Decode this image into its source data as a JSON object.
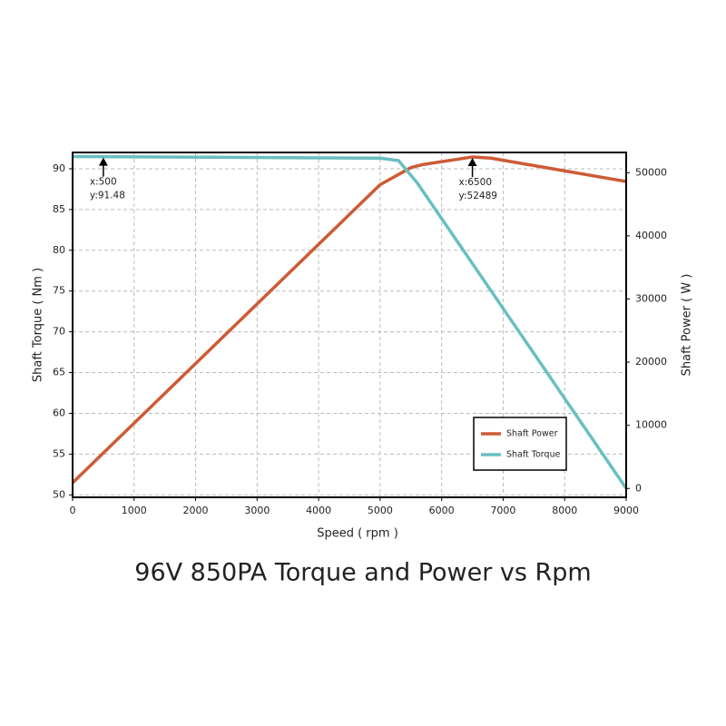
{
  "chart_data": {
    "type": "line",
    "title": "96V 850PA Torque and Power vs Rpm",
    "x_label": "Speed ( rpm )",
    "y_label": "Shaft Torque ( Nm )",
    "y2_label": "Shaft Power ( W )",
    "xlim": [
      0,
      9000
    ],
    "xticks": [
      0,
      1000,
      2000,
      3000,
      4000,
      5000,
      6000,
      7000,
      8000,
      9000
    ],
    "ylim": [
      49.7,
      92
    ],
    "yticks": [
      50,
      55,
      60,
      65,
      70,
      75,
      80,
      85,
      90
    ],
    "y2lim": [
      -1400,
      53200
    ],
    "y2ticks": [
      0,
      10000,
      20000,
      30000,
      40000,
      50000
    ],
    "grid": true,
    "legend": "lower right",
    "series": [
      {
        "name": "Shaft Power",
        "color": "#cd5b35",
        "axis": "y2",
        "x": [
          0,
          5000,
          5500,
          5700,
          6500,
          6800,
          9000
        ],
        "values": [
          900,
          48100,
          50800,
          51300,
          52489,
          52300,
          48600
        ]
      },
      {
        "name": "Shaft Torque",
        "color": "#69bfbf",
        "axis": "y",
        "x": [
          0,
          500,
          5000,
          5300,
          5600,
          9000
        ],
        "values": [
          91.5,
          91.48,
          91.3,
          91,
          88.3,
          50.8
        ]
      }
    ],
    "annotations": [
      {
        "lines": [
          "x:500",
          "y:91.48"
        ],
        "x": 500,
        "y": 91.48,
        "axis": "y"
      },
      {
        "lines": [
          "x:6500",
          "y:52489"
        ],
        "x": 6500,
        "y": 52489,
        "axis": "y2"
      }
    ]
  }
}
